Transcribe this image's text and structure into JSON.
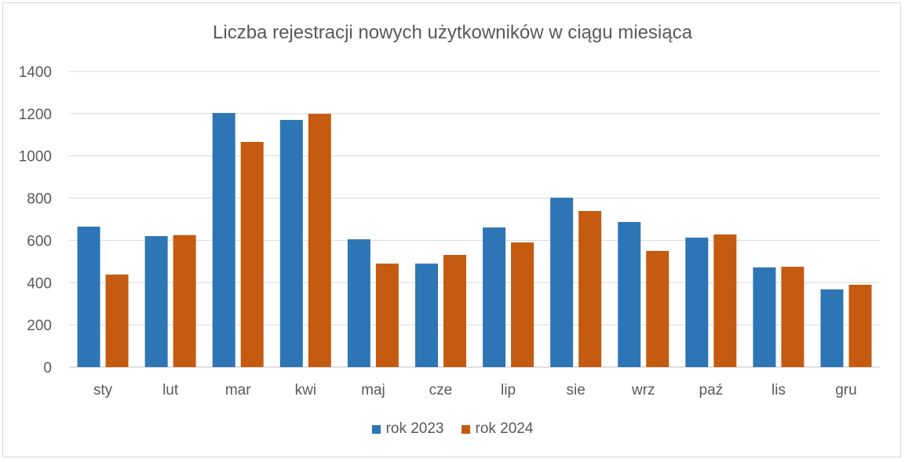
{
  "chart_data": {
    "type": "bar",
    "title": "Liczba rejestracji nowych użytkowników w ciągu miesiąca",
    "xlabel": "",
    "ylabel": "",
    "ylim": [
      0,
      1400
    ],
    "yticks": [
      0,
      200,
      400,
      600,
      800,
      1000,
      1200,
      1400
    ],
    "grid": true,
    "legend_position": "bottom",
    "categories": [
      "sty",
      "lut",
      "mar",
      "kwi",
      "maj",
      "cze",
      "lip",
      "sie",
      "wrz",
      "paź",
      "lis",
      "gru"
    ],
    "series": [
      {
        "name": "rok 2023",
        "color": "#2E75B6",
        "values": [
          665,
          620,
          1203,
          1170,
          605,
          490,
          661,
          802,
          687,
          613,
          472,
          368
        ]
      },
      {
        "name": "rok 2024",
        "color": "#C55A11",
        "values": [
          438,
          625,
          1066,
          1199,
          490,
          531,
          590,
          739,
          550,
          628,
          475,
          390
        ]
      }
    ]
  }
}
